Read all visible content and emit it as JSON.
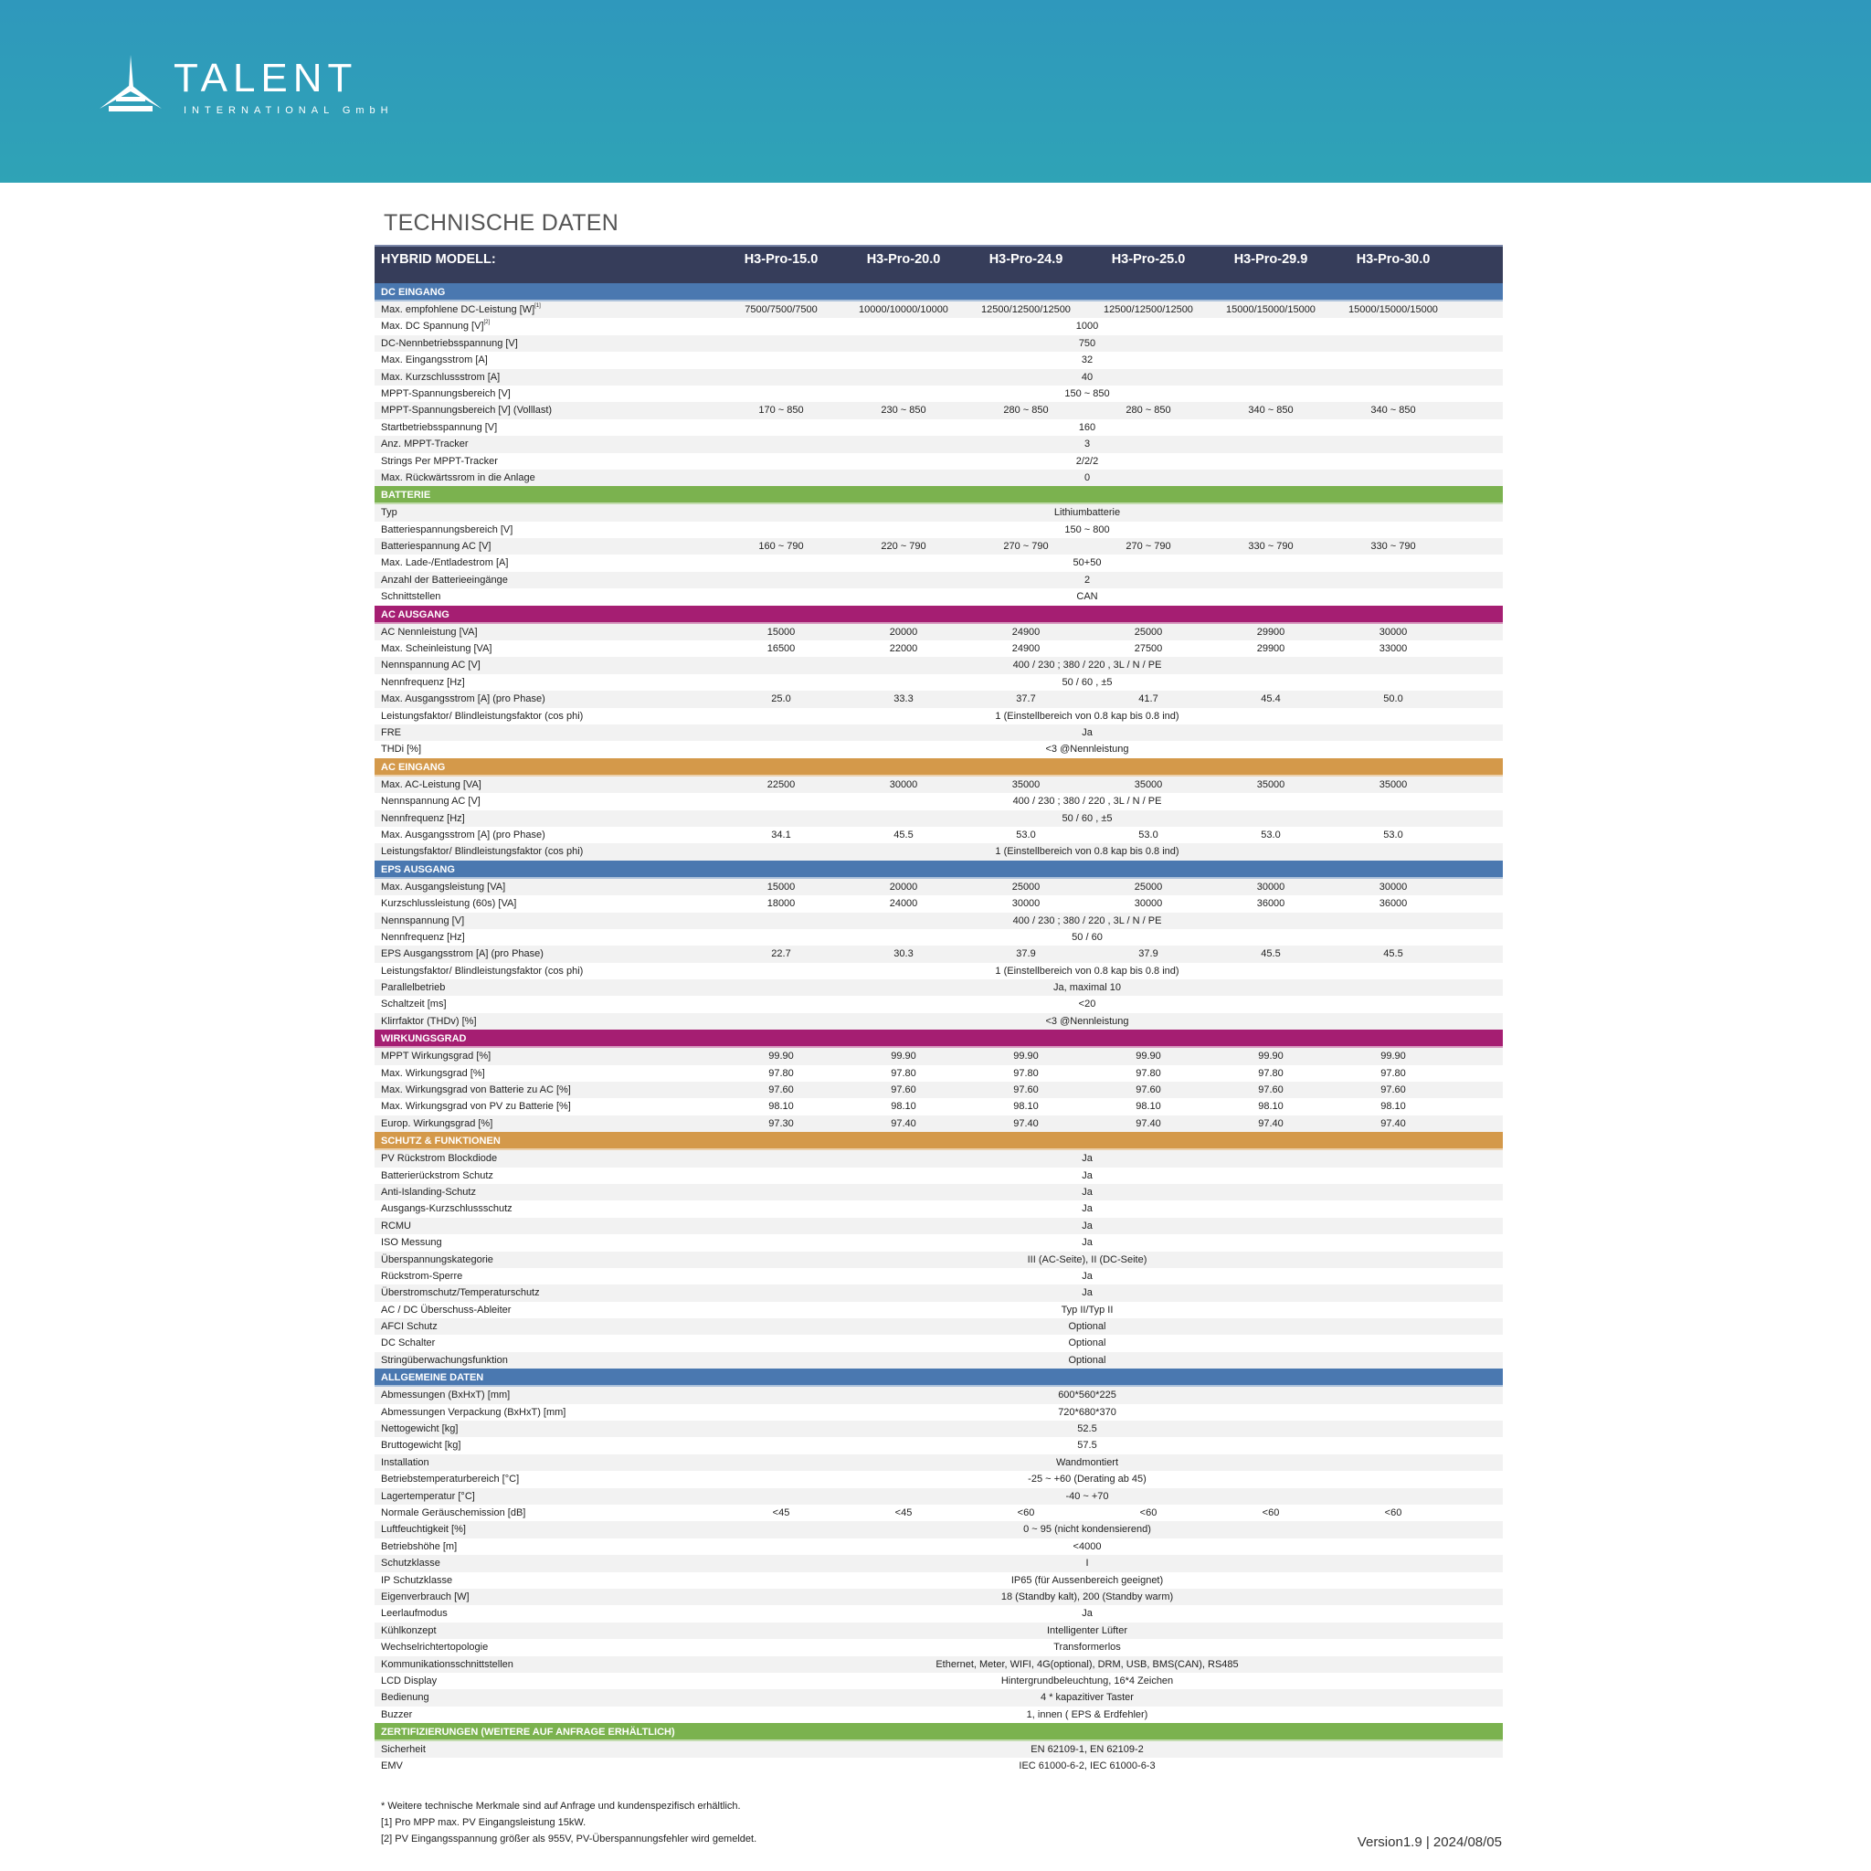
{
  "brand": {
    "name": "TALENT",
    "sub": "INTERNATIONAL GmbH",
    "banner_color": "#2f9dba"
  },
  "title": "TECHNISCHE DATEN",
  "header": {
    "label": "HYBRID MODELL:",
    "models": [
      "H3-Pro-15.0",
      "H3-Pro-20.0",
      "H3-Pro-24.9",
      "H3-Pro-25.0",
      "H3-Pro-29.9",
      "H3-Pro-30.0"
    ]
  },
  "sections": [
    {
      "title": "DC EINGANG",
      "color": "#4a78b0",
      "rows": [
        {
          "label": "Max. empfohlene DC-Leistung [W]",
          "sup": "[1]",
          "values": [
            "7500/7500/7500",
            "10000/10000/10000",
            "12500/12500/12500",
            "12500/12500/12500",
            "15000/15000/15000",
            "15000/15000/15000"
          ]
        },
        {
          "label": "Max. DC Spannung [V]",
          "sup": "[2]",
          "value": "1000"
        },
        {
          "label": "DC-Nennbetriebsspannung [V]",
          "value": "750"
        },
        {
          "label": "Max. Eingangsstrom [A]",
          "value": "32"
        },
        {
          "label": "Max. Kurzschlussstrom [A]",
          "value": "40"
        },
        {
          "label": "MPPT-Spannungsbereich [V]",
          "value": "150 ~ 850"
        },
        {
          "label": "MPPT-Spannungsbereich [V] (Volllast)",
          "values": [
            "170 ~ 850",
            "230 ~ 850",
            "280 ~ 850",
            "280 ~ 850",
            "340 ~ 850",
            "340 ~ 850"
          ]
        },
        {
          "label": "Startbetriebsspannung [V]",
          "value": "160"
        },
        {
          "label": "Anz. MPPT-Tracker",
          "value": "3"
        },
        {
          "label": "Strings Per MPPT-Tracker",
          "value": "2/2/2"
        },
        {
          "label": "Max. Rückwärtssrom in die Anlage",
          "value": "0"
        }
      ]
    },
    {
      "title": "BATTERIE",
      "color": "#7bb24f",
      "rows": [
        {
          "label": "Typ",
          "value": "Lithiumbatterie"
        },
        {
          "label": "Batteriespannungsbereich [V]",
          "value": "150 ~ 800"
        },
        {
          "label": "Batteriespannung AC [V]",
          "values": [
            "160 ~ 790",
            "220 ~ 790",
            "270 ~ 790",
            "270 ~ 790",
            "330 ~ 790",
            "330 ~ 790"
          ]
        },
        {
          "label": "Max. Lade-/Entladestrom [A]",
          "value": "50+50"
        },
        {
          "label": "Anzahl der Batterieeingänge",
          "value": "2"
        },
        {
          "label": "Schnittstellen",
          "value": "CAN"
        }
      ]
    },
    {
      "title": "AC AUSGANG",
      "color": "#a51e72",
      "rows": [
        {
          "label": "AC Nennleistung [VA]",
          "values": [
            "15000",
            "20000",
            "24900",
            "25000",
            "29900",
            "30000"
          ]
        },
        {
          "label": "Max. Scheinleistung [VA]",
          "values": [
            "16500",
            "22000",
            "24900",
            "27500",
            "29900",
            "33000"
          ]
        },
        {
          "label": "Nennspannung AC [V]",
          "value": "400 / 230 ; 380 / 220 , 3L / N / PE"
        },
        {
          "label": "Nennfrequenz [Hz]",
          "value": "50 / 60 , ±5"
        },
        {
          "label": "Max. Ausgangsstrom [A] (pro Phase)",
          "values": [
            "25.0",
            "33.3",
            "37.7",
            "41.7",
            "45.4",
            "50.0"
          ]
        },
        {
          "label": "Leistungsfaktor/ Blindleistungsfaktor (cos phi)",
          "value": "1 (Einstellbereich von 0.8 kap bis 0.8 ind)"
        },
        {
          "label": "FRE",
          "value": "Ja"
        },
        {
          "label": "THDi [%]",
          "value": "<3 @Nennleistung"
        }
      ]
    },
    {
      "title": "AC EINGANG",
      "color": "#d4994a",
      "rows": [
        {
          "label": "Max. AC-Leistung [VA]",
          "values": [
            "22500",
            "30000",
            "35000",
            "35000",
            "35000",
            "35000"
          ]
        },
        {
          "label": "Nennspannung AC [V]",
          "value": "400 / 230 ; 380 / 220 , 3L / N / PE"
        },
        {
          "label": "Nennfrequenz [Hz]",
          "value": "50 / 60 , ±5"
        },
        {
          "label": "Max. Ausgangsstrom [A] (pro Phase)",
          "values": [
            "34.1",
            "45.5",
            "53.0",
            "53.0",
            "53.0",
            "53.0"
          ]
        },
        {
          "label": "Leistungsfaktor/ Blindleistungsfaktor (cos phi)",
          "value": "1 (Einstellbereich von 0.8 kap bis 0.8 ind)"
        }
      ]
    },
    {
      "title": "EPS AUSGANG",
      "color": "#4a78b0",
      "rows": [
        {
          "label": "Max. Ausgangsleistung [VA]",
          "values": [
            "15000",
            "20000",
            "25000",
            "25000",
            "30000",
            "30000"
          ]
        },
        {
          "label": "Kurzschlussleistung (60s) [VA]",
          "values": [
            "18000",
            "24000",
            "30000",
            "30000",
            "36000",
            "36000"
          ]
        },
        {
          "label": "Nennspannung [V]",
          "value": "400 / 230 ; 380 / 220 , 3L / N / PE"
        },
        {
          "label": "Nennfrequenz [Hz]",
          "value": "50 / 60"
        },
        {
          "label": "EPS Ausgangsstrom [A] (pro Phase)",
          "values": [
            "22.7",
            "30.3",
            "37.9",
            "37.9",
            "45.5",
            "45.5"
          ]
        },
        {
          "label": "Leistungsfaktor/ Blindleistungsfaktor (cos phi)",
          "value": "1 (Einstellbereich von 0.8 kap bis 0.8 ind)"
        },
        {
          "label": "Parallelbetrieb",
          "value": "Ja, maximal 10"
        },
        {
          "label": "Schaltzeit [ms]",
          "value": "<20"
        },
        {
          "label": "Klirrfaktor (THDv) [%]",
          "value": "<3 @Nennleistung"
        }
      ]
    },
    {
      "title": "WIRKUNGSGRAD",
      "color": "#a51e72",
      "rows": [
        {
          "label": "MPPT Wirkungsgrad [%]",
          "values": [
            "99.90",
            "99.90",
            "99.90",
            "99.90",
            "99.90",
            "99.90"
          ]
        },
        {
          "label": "Max. Wirkungsgrad [%]",
          "values": [
            "97.80",
            "97.80",
            "97.80",
            "97.80",
            "97.80",
            "97.80"
          ]
        },
        {
          "label": "Max. Wirkungsgrad von Batterie zu AC [%]",
          "values": [
            "97.60",
            "97.60",
            "97.60",
            "97.60",
            "97.60",
            "97.60"
          ]
        },
        {
          "label": "Max. Wirkungsgrad von PV zu Batterie [%]",
          "values": [
            "98.10",
            "98.10",
            "98.10",
            "98.10",
            "98.10",
            "98.10"
          ]
        },
        {
          "label": "Europ. Wirkungsgrad [%]",
          "values": [
            "97.30",
            "97.40",
            "97.40",
            "97.40",
            "97.40",
            "97.40"
          ]
        }
      ]
    },
    {
      "title": "SCHUTZ & FUNKTIONEN",
      "color": "#d4994a",
      "rows": [
        {
          "label": "PV Rückstrom Blockdiode",
          "value": "Ja"
        },
        {
          "label": "Batterierückstrom Schutz",
          "value": "Ja"
        },
        {
          "label": "Anti-Islanding-Schutz",
          "value": "Ja"
        },
        {
          "label": "Ausgangs-Kurzschlussschutz",
          "value": "Ja"
        },
        {
          "label": "RCMU",
          "value": "Ja"
        },
        {
          "label": "ISO Messung",
          "value": "Ja"
        },
        {
          "label": "Überspannungskategorie",
          "value": "III (AC-Seite), II (DC-Seite)"
        },
        {
          "label": "Rückstrom-Sperre",
          "value": "Ja"
        },
        {
          "label": "Überstromschutz/Temperaturschutz",
          "value": "Ja"
        },
        {
          "label": "AC / DC Überschuss-Ableiter",
          "value": "Typ II/Typ II"
        },
        {
          "label": "AFCI Schutz",
          "value": "Optional"
        },
        {
          "label": "DC Schalter",
          "value": "Optional"
        },
        {
          "label": "Stringüberwachungsfunktion",
          "value": "Optional"
        }
      ]
    },
    {
      "title": "ALLGEMEINE DATEN",
      "color": "#4a78b0",
      "rows": [
        {
          "label": "Abmessungen (BxHxT) [mm]",
          "value": "600*560*225"
        },
        {
          "label": "Abmessungen Verpackung (BxHxT) [mm]",
          "value": "720*680*370"
        },
        {
          "label": "Nettogewicht [kg]",
          "value": "52.5"
        },
        {
          "label": "Bruttogewicht [kg]",
          "value": "57.5"
        },
        {
          "label": "Installation",
          "value": "Wandmontiert"
        },
        {
          "label": "Betriebstemperaturbereich [°C]",
          "value": "-25 ~ +60 (Derating ab 45)"
        },
        {
          "label": "Lagertemperatur [°C]",
          "value": "-40 ~ +70"
        },
        {
          "label": "Normale Geräuschemission [dB]",
          "values": [
            "<45",
            "<45",
            "<60",
            "<60",
            "<60",
            "<60"
          ]
        },
        {
          "label": "Luftfeuchtigkeit [%]",
          "value": "0 ~ 95 (nicht kondensierend)"
        },
        {
          "label": "Betriebshöhe [m]",
          "value": "<4000"
        },
        {
          "label": "Schutzklasse",
          "value": "I"
        },
        {
          "label": "IP Schutzklasse",
          "value": "IP65 (für Aussenbereich geeignet)"
        },
        {
          "label": "Eigenverbrauch [W]",
          "value": "18  (Standby kalt),  200 (Standby warm)"
        },
        {
          "label": "Leerlaufmodus",
          "value": "Ja"
        },
        {
          "label": "Kühlkonzept",
          "value": "Intelligenter Lüfter"
        },
        {
          "label": "Wechselrichtertopologie",
          "value": "Transformerlos"
        },
        {
          "label": "Kommunikationsschnittstellen",
          "value": "Ethernet, Meter, WIFI, 4G(optional), DRM, USB, BMS(CAN), RS485"
        },
        {
          "label": "LCD Display",
          "value": "Hintergrundbeleuchtung, 16*4 Zeichen"
        },
        {
          "label": "Bedienung",
          "value": "4 * kapazitiver Taster"
        },
        {
          "label": "Buzzer",
          "value": "1, innen ( EPS & Erdfehler)"
        }
      ]
    },
    {
      "title": "ZERTIFIZIERUNGEN (WEITERE AUF ANFRAGE ERHÄLTLICH)",
      "color": "#7bb24f",
      "rows": [
        {
          "label": "Sicherheit",
          "value": "EN 62109-1, EN 62109-2"
        },
        {
          "label": "EMV",
          "value": "IEC 61000-6-2, IEC 61000-6-3"
        }
      ]
    }
  ],
  "notes": [
    "* Weitere technische Merkmale sind auf Anfrage und kundenspezifisch erhältlich.",
    "[1] Pro MPP max. PV Eingangsleistung 15kW.",
    "[2] PV Eingangsspannung größer als 955V, PV-Überspannungsfehler wird gemeldet."
  ],
  "version": "Version1.9 |  2024/08/05"
}
